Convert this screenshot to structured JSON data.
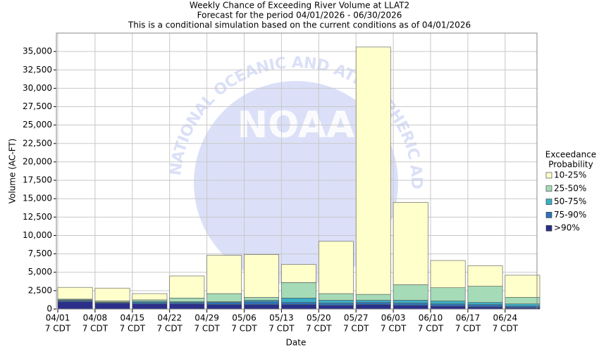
{
  "chart_data": {
    "type": "stacked_bar",
    "title": "Weekly Chance of Exceeding River Volume at LLAT2",
    "subtitle": "Forecast for the period 04/01/2026 - 06/30/2026",
    "note": "This is a conditional simulation based on the current conditions as of 04/01/2026",
    "watermark": "NOAA",
    "watermark_ring": "NATIONAL OCEANIC AND ATMOSPHERIC ADMINISTRATION",
    "x_label": "Date",
    "y_label": "Volume (AC-FT)",
    "legend_title": [
      "Exceedance",
      "Probability"
    ],
    "categories": [
      "04/01",
      "04/08",
      "04/15",
      "04/22",
      "04/29",
      "05/06",
      "05/13",
      "05/20",
      "05/27",
      "06/03",
      "06/10",
      "06/17",
      "06/24"
    ],
    "category_sublabel": "7 CDT",
    "series": [
      {
        "name": ">90%",
        "color": "#2b2f8a",
        "values": [
          1000,
          800,
          700,
          700,
          600,
          600,
          600,
          500,
          600,
          500,
          400,
          300,
          200
        ]
      },
      {
        "name": "75-90%",
        "color": "#2f72b6",
        "values": [
          150,
          100,
          200,
          200,
          300,
          400,
          300,
          300,
          300,
          300,
          300,
          300,
          200
        ]
      },
      {
        "name": "50-75%",
        "color": "#3badc4",
        "values": [
          100,
          50,
          150,
          100,
          100,
          200,
          600,
          400,
          300,
          400,
          400,
          300,
          300
        ]
      },
      {
        "name": "25-50%",
        "color": "#a5dbb7",
        "values": [
          100,
          150,
          200,
          500,
          1100,
          400,
          2100,
          900,
          800,
          2100,
          1800,
          2200,
          900
        ]
      },
      {
        "name": "10-25%",
        "color": "#ffffcc",
        "values": [
          1600,
          1750,
          850,
          3000,
          5200,
          5800,
          2450,
          7100,
          33600,
          11200,
          3700,
          2800,
          3000
        ]
      }
    ],
    "ylim": [
      0,
      37500
    ],
    "yticks": [
      0,
      {
        "value": 2500,
        "label": "2,500"
      },
      {
        "value": 5000,
        "label": "5,000"
      },
      {
        "value": 7500,
        "label": "7,500"
      },
      {
        "value": 10000,
        "label": "10,000"
      },
      {
        "value": 12500,
        "label": "12,500"
      },
      {
        "value": 15000,
        "label": "15,000"
      },
      {
        "value": 17500,
        "label": "17,500"
      },
      {
        "value": 20000,
        "label": "20,000"
      },
      {
        "value": 22500,
        "label": "22,500"
      },
      {
        "value": 25000,
        "label": "25,000"
      },
      {
        "value": 27500,
        "label": "27,500"
      },
      {
        "value": 30000,
        "label": "30,000"
      },
      {
        "value": 32500,
        "label": "32,500"
      },
      {
        "value": 35000,
        "label": "35,000"
      }
    ],
    "grid": true,
    "legend": "right"
  }
}
